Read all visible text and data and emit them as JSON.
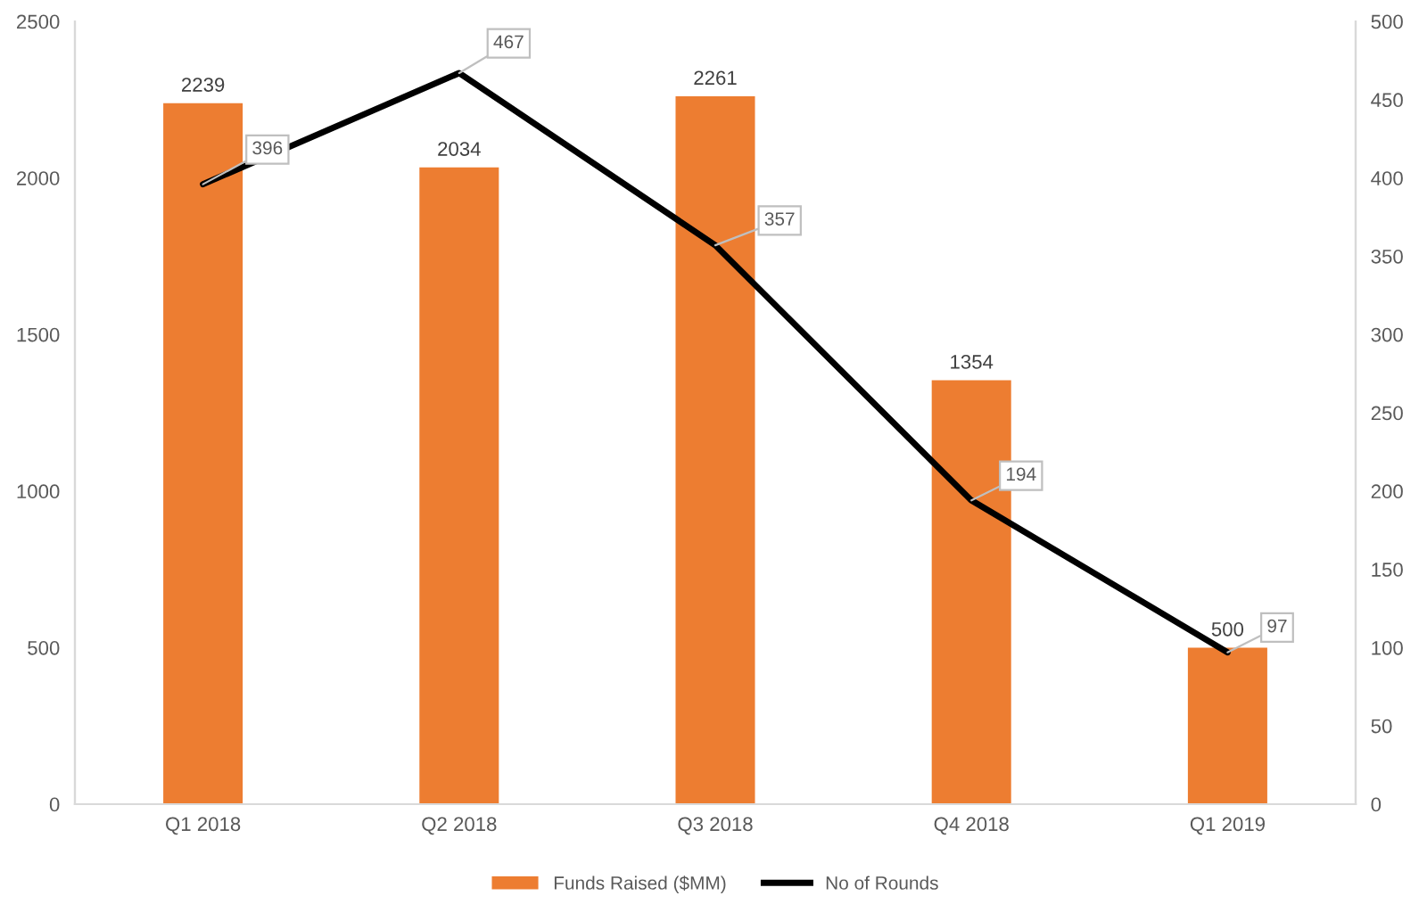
{
  "chart_data": {
    "type": "bar",
    "categories": [
      "Q1 2018",
      "Q2 2018",
      "Q3 2018",
      "Q4 2018",
      "Q1 2019"
    ],
    "series": [
      {
        "name": "Funds Raised ($MM)",
        "color": "#ed7d31",
        "values": [
          2239,
          2034,
          2261,
          1354,
          500
        ]
      },
      {
        "name": "No of Rounds",
        "type": "line",
        "axis": "y2",
        "color": "#000000",
        "values": [
          396,
          467,
          357,
          194,
          97
        ]
      }
    ],
    "ylim": [
      0,
      2500
    ],
    "yticks": [
      0,
      500,
      1000,
      1500,
      2000,
      2500
    ],
    "y2lim": [
      0,
      500
    ],
    "y2ticks": [
      0,
      50,
      100,
      150,
      200,
      250,
      300,
      350,
      400,
      450,
      500
    ],
    "data_labels": true,
    "legend": "bottom",
    "grid": false
  }
}
